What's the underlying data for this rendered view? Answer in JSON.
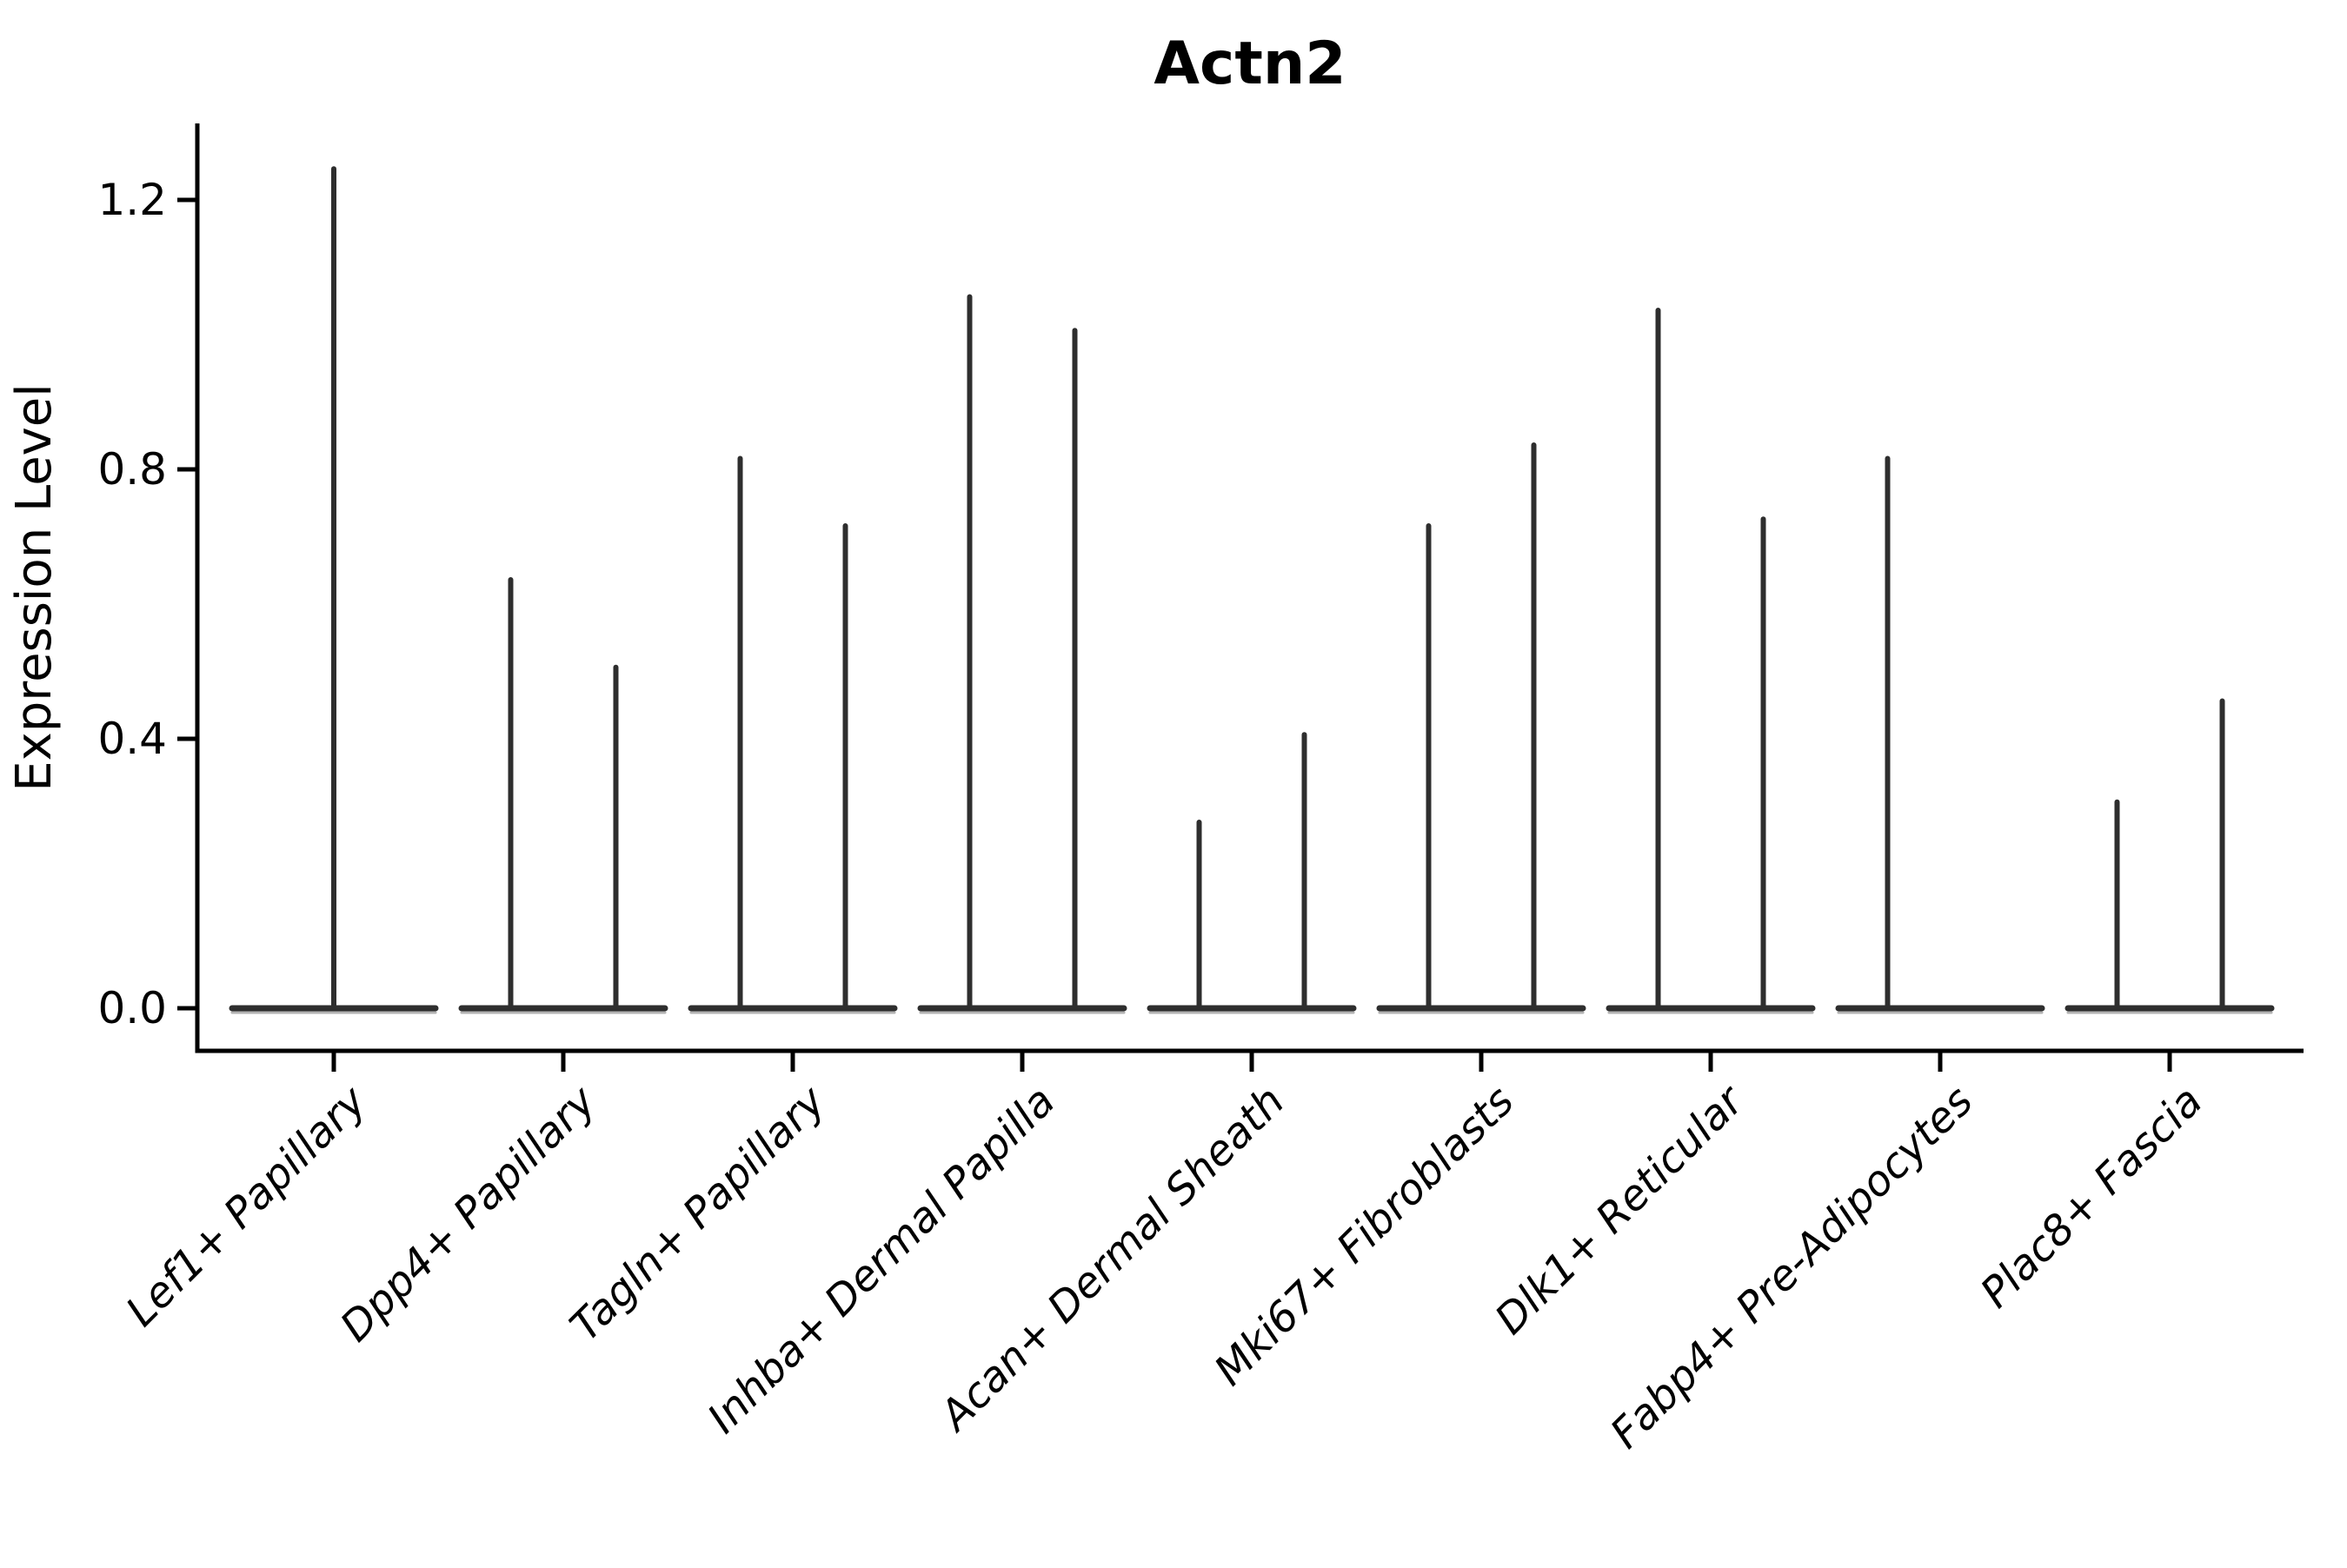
{
  "title": "Actn2",
  "axes": {
    "y_label": "Expression Level",
    "y_tick_labels": [
      "0.0",
      "0.4",
      "0.8",
      "1.2"
    ],
    "x_tick_labels": [
      "Lef1+ Papillary",
      "Dpp4+ Papillary",
      "Tagln+ Papillary",
      "Inhba+ Dermal Papilla",
      "Acan+ Dermal Sheath",
      "Mki67+ Fibroblasts",
      "Dlk1+ Reticular",
      "Fabp4+ Pre-Adipocytes",
      "Plac8+ Fascia"
    ]
  },
  "chart_data": {
    "type": "violin",
    "title": "Actn2",
    "xlabel": "",
    "ylabel": "Expression Level",
    "ylim": [
      -0.06,
      1.31
    ],
    "yticks": [
      0.0,
      0.4,
      0.8,
      1.2
    ],
    "grid": false,
    "legend": "none",
    "note": "Needle-thin violins: each violin collapses to a flat baseline at 0 with a thin spike to the max expression value. Categories with two spikes contain two side-by-side violins (left/right); max=0 means a flat violin with no spike.",
    "categories": [
      {
        "label": "Lef1+ Papillary",
        "violins": [
          {
            "side": "full",
            "max": 1.25
          }
        ]
      },
      {
        "label": "Dpp4+ Papillary",
        "violins": [
          {
            "side": "left",
            "max": 0.64
          },
          {
            "side": "right",
            "max": 0.51
          }
        ]
      },
      {
        "label": "Tagln+ Papillary",
        "violins": [
          {
            "side": "left",
            "max": 0.82
          },
          {
            "side": "right",
            "max": 0.72
          }
        ]
      },
      {
        "label": "Inhba+ Dermal Papilla",
        "violins": [
          {
            "side": "left",
            "max": 1.06
          },
          {
            "side": "right",
            "max": 1.01
          }
        ]
      },
      {
        "label": "Acan+ Dermal Sheath",
        "violins": [
          {
            "side": "left",
            "max": 0.28
          },
          {
            "side": "right",
            "max": 0.41
          }
        ]
      },
      {
        "label": "Mki67+ Fibroblasts",
        "violins": [
          {
            "side": "left",
            "max": 0.72
          },
          {
            "side": "right",
            "max": 0.84
          }
        ]
      },
      {
        "label": "Dlk1+ Reticular",
        "violins": [
          {
            "side": "left",
            "max": 1.04
          },
          {
            "side": "right",
            "max": 0.73
          }
        ]
      },
      {
        "label": "Fabp4+ Pre-Adipocytes",
        "violins": [
          {
            "side": "left",
            "max": 0.82
          },
          {
            "side": "right",
            "max": 0.0
          }
        ]
      },
      {
        "label": "Plac8+ Fascia",
        "violins": [
          {
            "side": "left",
            "max": 0.31
          },
          {
            "side": "right",
            "max": 0.46
          }
        ]
      }
    ],
    "colors": {
      "violin_line": "#2e2e2e",
      "violin_underline": "#b3b3b3",
      "axis": "#000000",
      "text": "#000000",
      "background": "#ffffff"
    }
  }
}
